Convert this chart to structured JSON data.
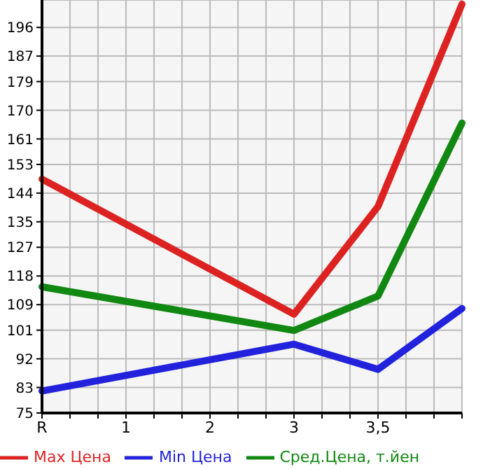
{
  "chart_data": {
    "type": "line",
    "categories": [
      "R",
      "1",
      "2",
      "3",
      "3,5",
      null
    ],
    "series": [
      {
        "name": "Max Цена",
        "color": "#dd2222",
        "values": [
          148.4,
          null,
          null,
          106,
          139.8,
          203.3
        ]
      },
      {
        "name": "Min Цена",
        "color": "#2222dd",
        "values": [
          81.9,
          null,
          null,
          96.6,
          88.7,
          107.8
        ]
      },
      {
        "name": "Сред.Цена, т.йен",
        "color": "#118811",
        "values": [
          114.6,
          null,
          null,
          100.9,
          111.7,
          166
        ]
      }
    ],
    "ylim": [
      75,
      204.6
    ],
    "yticks": [
      75,
      83,
      92,
      101,
      109,
      118,
      127,
      135,
      144,
      153,
      161,
      170,
      179,
      187,
      196
    ],
    "grid": true,
    "legend": "bottom",
    "marker": "none",
    "line_style": "solid"
  }
}
